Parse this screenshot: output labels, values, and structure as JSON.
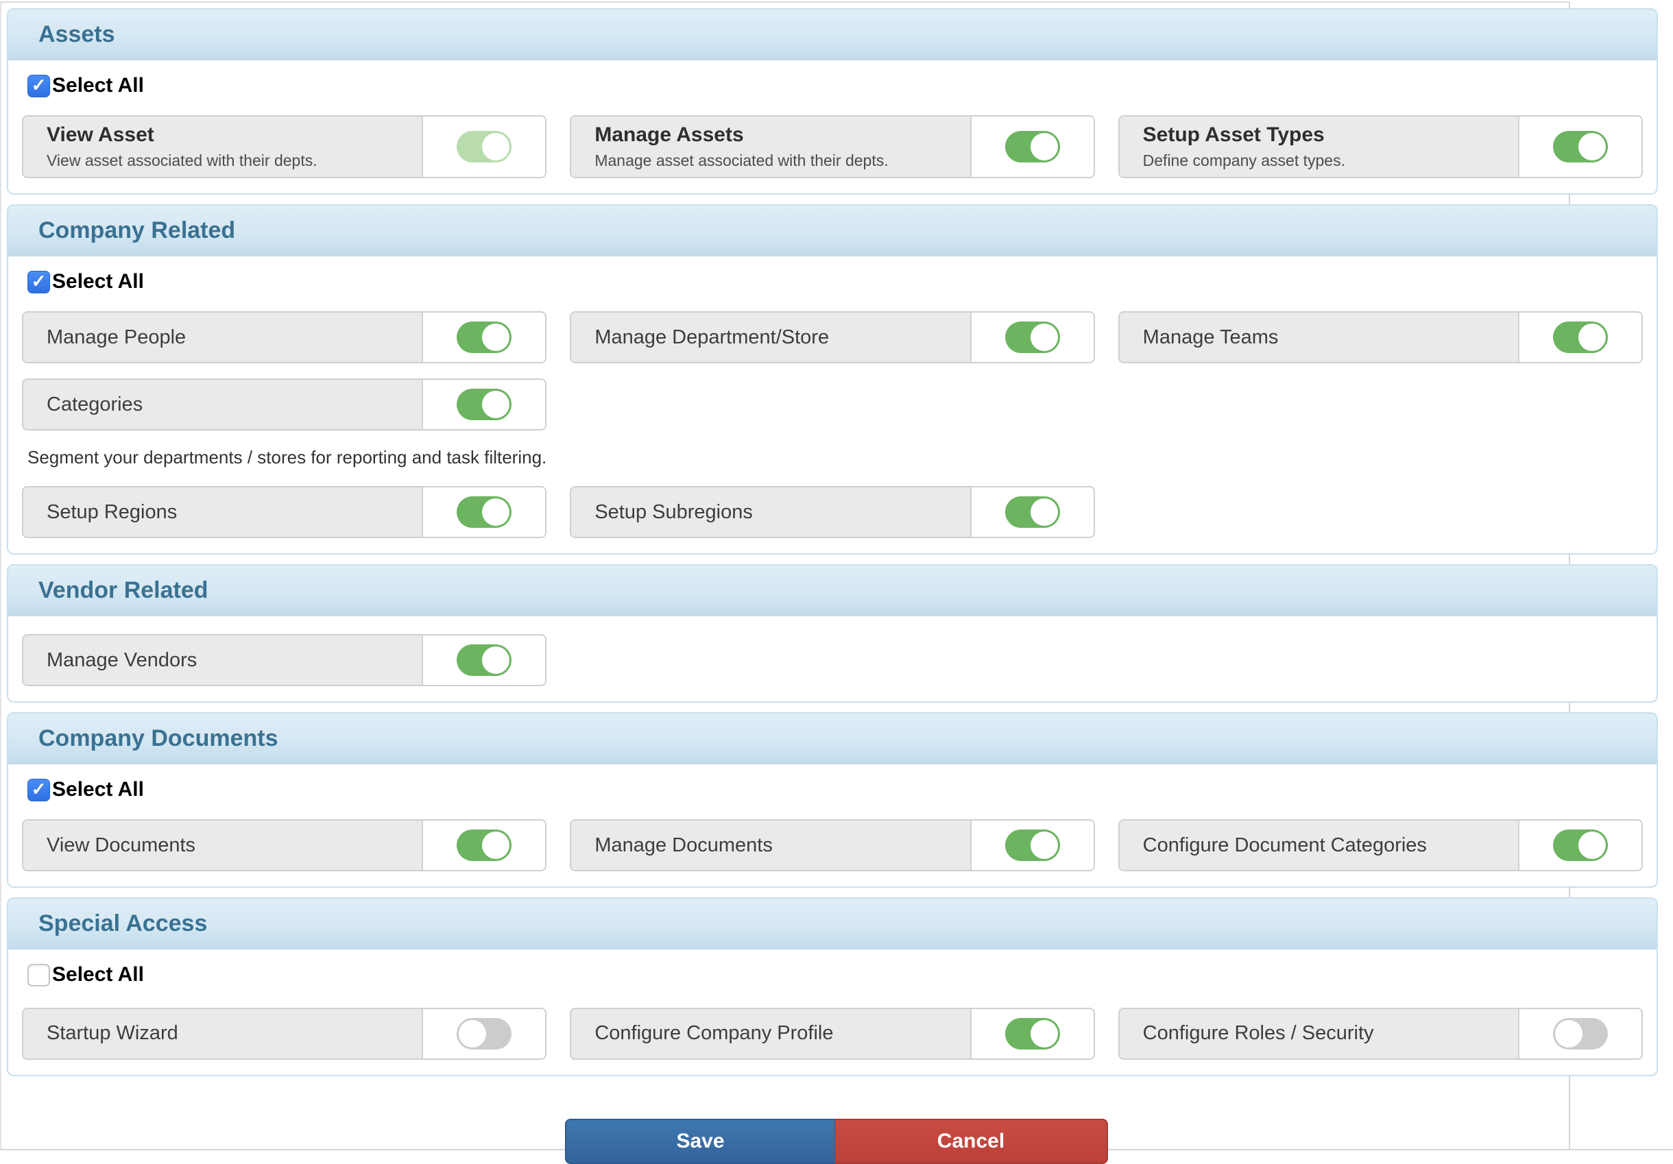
{
  "colors": {
    "toggle_on": "#6cb460",
    "toggle_on_disabled": "#b9dcae",
    "toggle_off": "#cccccc",
    "checkbox_checked_blue": "#2e6fe2",
    "section_title_blue": "#3a7191",
    "section_header_bg": "#d4e7f3",
    "card_label_bg": "#eaeaea",
    "save_button_blue": "#34639b",
    "cancel_button_red": "#ba4038"
  },
  "select_all_label": "Select All",
  "sections": [
    {
      "title": "Assets",
      "select_all": {
        "present": true,
        "checked": true
      },
      "rows": [
        {
          "type": "cards",
          "cards": [
            {
              "title": "View Asset",
              "subtitle": "View asset associated with their depts.",
              "toggle": "on-disabled"
            },
            {
              "title": "Manage Assets",
              "subtitle": "Manage asset associated with their depts.",
              "toggle": "on"
            },
            {
              "title": "Setup Asset Types",
              "subtitle": "Define company asset types.",
              "toggle": "on"
            }
          ]
        }
      ]
    },
    {
      "title": "Company Related",
      "select_all": {
        "present": true,
        "checked": true
      },
      "rows": [
        {
          "type": "cards",
          "cards": [
            {
              "title": "Manage People",
              "toggle": "on"
            },
            {
              "title": "Manage Department/Store",
              "toggle": "on"
            },
            {
              "title": "Manage Teams",
              "toggle": "on"
            },
            {
              "title": "Categories",
              "toggle": "on"
            }
          ]
        },
        {
          "type": "text",
          "text": "Segment your departments / stores for reporting and task filtering."
        },
        {
          "type": "cards",
          "cards": [
            {
              "title": "Setup Regions",
              "toggle": "on"
            },
            {
              "title": "Setup Subregions",
              "toggle": "on"
            }
          ]
        }
      ]
    },
    {
      "title": "Vendor Related",
      "select_all": {
        "present": false,
        "checked": false
      },
      "rows": [
        {
          "type": "cards",
          "cards": [
            {
              "title": "Manage Vendors",
              "toggle": "on"
            }
          ]
        }
      ]
    },
    {
      "title": "Company Documents",
      "select_all": {
        "present": true,
        "checked": true
      },
      "rows": [
        {
          "type": "cards",
          "cards": [
            {
              "title": "View Documents",
              "toggle": "on"
            },
            {
              "title": "Manage Documents",
              "toggle": "on"
            },
            {
              "title": "Configure Document Categories",
              "toggle": "on"
            }
          ]
        }
      ]
    },
    {
      "title": "Special Access",
      "select_all": {
        "present": true,
        "checked": false
      },
      "rows": [
        {
          "type": "cards",
          "cards": [
            {
              "title": "Startup Wizard",
              "toggle": "off"
            },
            {
              "title": "Configure Company Profile",
              "toggle": "on"
            },
            {
              "title": "Configure Roles / Security",
              "toggle": "off"
            }
          ]
        }
      ]
    }
  ],
  "footer": {
    "save_label": "Save",
    "cancel_label": "Cancel"
  }
}
